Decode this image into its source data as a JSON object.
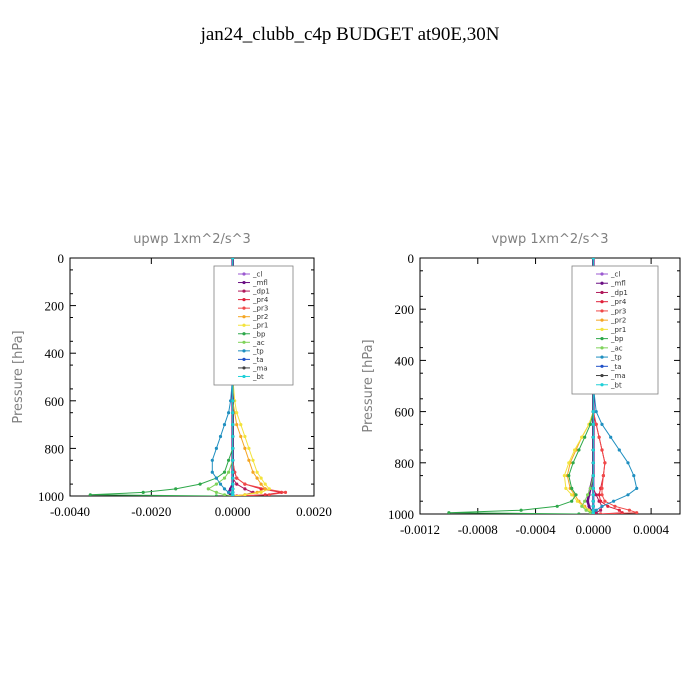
{
  "page_title": "jan24_clubb_c4p  BUDGET at90E,30N",
  "legend_entries": [
    "_cl",
    "_mfl",
    "_dp1",
    "_pr4",
    "_pr3",
    "_pr2",
    "_pr1",
    "_bp",
    "_ac",
    "_tp",
    "_ta",
    "_ma",
    "_bt"
  ],
  "colors": {
    "_cl": "#9b59d0",
    "_mfl": "#6a0d83",
    "_dp1": "#b0185a",
    "_pr4": "#e0203a",
    "_pr3": "#f04848",
    "_pr2": "#f5a623",
    "_pr1": "#f3e33b",
    "_bp": "#2ea84a",
    "_ac": "#7fd35a",
    "_tp": "#1f8fc0",
    "_ta": "#2050c8",
    "_ma": "#404040",
    "_bt": "#20d0d8"
  },
  "chart_data": [
    {
      "type": "line",
      "title": "upwp   1xm^2/s^3",
      "xlabel": "",
      "ylabel": "Pressure [hPa]",
      "xlim": [
        -0.004,
        0.002
      ],
      "ylim": [
        1000,
        0
      ],
      "x_ticks": [
        "-0.0040",
        "-0.0020",
        "0.0000",
        "0.0020"
      ],
      "x_tick_values": [
        -0.004,
        -0.002,
        0.0,
        0.002
      ],
      "y_ticks": [
        "0",
        "200",
        "400",
        "600",
        "800",
        "1000"
      ],
      "y_tick_values": [
        0,
        200,
        400,
        600,
        800,
        1000
      ],
      "pressure": [
        0,
        100,
        200,
        300,
        400,
        500,
        600,
        650,
        700,
        750,
        800,
        850,
        900,
        925,
        950,
        970,
        985,
        995,
        1000
      ],
      "series": [
        {
          "name": "_cl",
          "values": [
            0,
            0,
            0,
            0,
            0,
            0,
            0,
            0,
            0,
            0,
            0,
            0,
            0,
            0,
            0,
            0,
            0,
            0,
            0
          ]
        },
        {
          "name": "_mfl",
          "values": [
            0,
            0,
            0,
            0,
            0,
            0,
            0,
            0,
            0,
            0,
            0,
            0,
            0,
            0,
            0,
            -5e-05,
            -0.0001,
            -5e-05,
            0
          ]
        },
        {
          "name": "_dp1",
          "values": [
            0,
            0,
            0,
            0,
            0,
            0,
            0,
            0,
            0,
            0,
            0,
            0,
            0,
            0,
            0.0001,
            0.0003,
            0.0005,
            0.0003,
            0
          ]
        },
        {
          "name": "_pr4",
          "values": [
            0,
            0,
            0,
            0,
            0,
            0,
            0,
            0,
            0,
            0,
            0,
            0,
            5e-05,
            0.0001,
            0.0003,
            0.0007,
            0.0012,
            0.0008,
            0.0001
          ]
        },
        {
          "name": "_pr3",
          "values": [
            0,
            0,
            0,
            0,
            0,
            0,
            0,
            0,
            0,
            0,
            0,
            0,
            5e-05,
            0.0001,
            0.0003,
            0.0008,
            0.0013,
            0.0009,
            0.0001
          ]
        },
        {
          "name": "_pr2",
          "values": [
            0,
            0,
            0,
            0,
            0,
            0,
            0,
            5e-05,
            0.0001,
            0.0002,
            0.0003,
            0.0004,
            0.0005,
            0.0006,
            0.0007,
            0.0008,
            0.0006,
            0.0003,
            0
          ]
        },
        {
          "name": "_pr1",
          "values": [
            0,
            0,
            0,
            0,
            0,
            0,
            5e-05,
            0.0001,
            0.0002,
            0.0003,
            0.0004,
            0.0005,
            0.0006,
            0.0007,
            0.0008,
            0.0009,
            0.0007,
            0.0003,
            0
          ]
        },
        {
          "name": "_bp",
          "values": [
            0,
            0,
            0,
            0,
            0,
            0,
            0,
            0,
            0,
            0,
            0,
            -0.0001,
            -0.0002,
            -0.0004,
            -0.0008,
            -0.0014,
            -0.0022,
            -0.0035,
            -0.0004
          ]
        },
        {
          "name": "_ac",
          "values": [
            0,
            0,
            0,
            0,
            0,
            0,
            0,
            0,
            0,
            0,
            0,
            0,
            -0.0001,
            -0.0002,
            -0.0004,
            -0.0006,
            -0.0004,
            -0.0002,
            0
          ]
        },
        {
          "name": "_tp",
          "values": [
            0,
            0,
            0,
            0,
            0,
            0,
            -5e-05,
            -0.0001,
            -0.0002,
            -0.0003,
            -0.0004,
            -0.0005,
            -0.0005,
            -0.0004,
            -0.0003,
            -0.0002,
            -0.0001,
            0,
            0
          ]
        },
        {
          "name": "_ta",
          "values": [
            0,
            0,
            0,
            0,
            0,
            0,
            0,
            0,
            0,
            0,
            0,
            0,
            0,
            0,
            0,
            0,
            0,
            0,
            0
          ]
        },
        {
          "name": "_ma",
          "values": [
            0,
            0,
            0,
            0,
            0,
            0,
            0,
            0,
            0,
            0,
            0,
            0,
            0,
            0,
            0,
            0,
            0,
            0,
            0
          ]
        },
        {
          "name": "_bt",
          "values": [
            0,
            0,
            0,
            0,
            0,
            0,
            0,
            0,
            0,
            0,
            0,
            0,
            0,
            0,
            0,
            0,
            0,
            0,
            0
          ]
        }
      ]
    },
    {
      "type": "line",
      "title": "vpwp   1xm^2/s^3",
      "xlabel": "",
      "ylabel": "Pressure [hPa]",
      "xlim": [
        -0.0012,
        0.0006
      ],
      "ylim": [
        1000,
        0
      ],
      "x_ticks": [
        "-0.0012",
        "-0.0008",
        "-0.0004",
        "0.0000",
        "0.0004"
      ],
      "x_tick_values": [
        -0.0012,
        -0.0008,
        -0.0004,
        0.0,
        0.0004
      ],
      "y_ticks": [
        "0",
        "200",
        "400",
        "600",
        "800",
        "1000"
      ],
      "y_tick_values": [
        0,
        200,
        400,
        600,
        800,
        1000
      ],
      "pressure": [
        0,
        100,
        200,
        300,
        400,
        500,
        600,
        650,
        700,
        750,
        800,
        850,
        900,
        925,
        950,
        970,
        985,
        995,
        1000
      ],
      "series": [
        {
          "name": "_cl",
          "values": [
            0,
            0,
            0,
            0,
            0,
            0,
            0,
            0,
            0,
            0,
            0,
            0,
            0,
            0,
            0,
            0,
            0,
            0,
            0
          ]
        },
        {
          "name": "_mfl",
          "values": [
            0,
            0,
            0,
            0,
            0,
            0,
            0,
            0,
            0,
            0,
            0,
            0,
            -2e-05,
            -3e-05,
            -4e-05,
            -3e-05,
            -2e-05,
            0,
            0
          ]
        },
        {
          "name": "_dp1",
          "values": [
            0,
            0,
            0,
            0,
            0,
            0,
            0,
            0,
            0,
            0,
            0,
            0,
            0,
            2e-05,
            4e-05,
            6e-05,
            5e-05,
            2e-05,
            0
          ]
        },
        {
          "name": "_pr4",
          "values": [
            0,
            0,
            0,
            0,
            0,
            0,
            0,
            2e-05,
            4e-05,
            6e-05,
            8e-05,
            7e-05,
            5e-05,
            4e-05,
            5e-05,
            0.0001,
            0.00018,
            0.0002,
            5e-05
          ]
        },
        {
          "name": "_pr3",
          "values": [
            0,
            0,
            0,
            0,
            0,
            0,
            0,
            2e-05,
            4e-05,
            6e-05,
            8e-05,
            7e-05,
            6e-05,
            6e-05,
            8e-05,
            0.00015,
            0.00025,
            0.0003,
            5e-05
          ]
        },
        {
          "name": "_pr2",
          "values": [
            0,
            0,
            0,
            0,
            0,
            0,
            0,
            -3e-05,
            -8e-05,
            -0.00012,
            -0.00016,
            -0.00018,
            -0.00016,
            -0.00013,
            -0.0001,
            -6e-05,
            -3e-05,
            0,
            0
          ]
        },
        {
          "name": "_pr1",
          "values": [
            0,
            0,
            0,
            0,
            0,
            0,
            0,
            -3e-05,
            -8e-05,
            -0.00013,
            -0.00017,
            -0.0002,
            -0.00019,
            -0.00015,
            -0.00011,
            -7e-05,
            -3e-05,
            0,
            0
          ]
        },
        {
          "name": "_bp",
          "values": [
            0,
            0,
            0,
            0,
            0,
            0,
            0,
            -2e-05,
            -6e-05,
            -0.0001,
            -0.00014,
            -0.00017,
            -0.00015,
            -0.00012,
            -0.00015,
            -0.00025,
            -0.0005,
            -0.001,
            -0.0001
          ]
        },
        {
          "name": "_ac",
          "values": [
            0,
            0,
            0,
            0,
            0,
            0,
            0,
            0,
            0,
            0,
            0,
            0,
            -2e-05,
            -4e-05,
            -6e-05,
            -8e-05,
            -5e-05,
            -2e-05,
            0
          ]
        },
        {
          "name": "_tp",
          "values": [
            0,
            0,
            0,
            0,
            0,
            0,
            2e-05,
            6e-05,
            0.00012,
            0.00018,
            0.00024,
            0.00028,
            0.0003,
            0.00024,
            0.00014,
            6e-05,
            2e-05,
            0,
            0
          ]
        },
        {
          "name": "_ta",
          "values": [
            0,
            0,
            0,
            0,
            0,
            0,
            0,
            0,
            0,
            0,
            0,
            0,
            0,
            0,
            0,
            0,
            0,
            0,
            0
          ]
        },
        {
          "name": "_ma",
          "values": [
            0,
            0,
            0,
            0,
            0,
            0,
            0,
            0,
            0,
            0,
            0,
            0,
            0,
            0,
            0,
            0,
            0,
            0,
            0
          ]
        },
        {
          "name": "_bt",
          "values": [
            0,
            0,
            0,
            0,
            0,
            0,
            0,
            0,
            0,
            0,
            0,
            0,
            0,
            0,
            0,
            0,
            0,
            0,
            0
          ]
        }
      ]
    }
  ]
}
